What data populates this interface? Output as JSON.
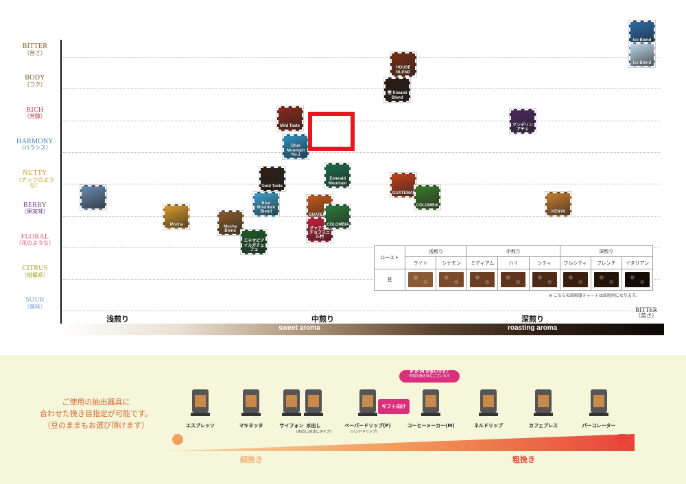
{
  "chart_data": {
    "type": "scatter",
    "y_axis": {
      "levels": [
        {
          "en": "BITTER",
          "jp": "（苦さ）",
          "color": "#8a5a2b"
        },
        {
          "en": "BODY",
          "jp": "（コク）",
          "color": "#6b5a1e"
        },
        {
          "en": "RICH",
          "jp": "（芳醇）",
          "color": "#c5343a"
        },
        {
          "en": "HARMONY",
          "jp": "（バランス）",
          "color": "#3d78b0"
        },
        {
          "en": "NUTTY",
          "jp": "（ナッツのような）",
          "color": "#c99a16"
        },
        {
          "en": "BERRY",
          "jp": "（果実味）",
          "color": "#7b3d8f"
        },
        {
          "en": "FLORAL",
          "jp": "（花のような）",
          "color": "#d9506f"
        },
        {
          "en": "CITRUS",
          "jp": "（柑橘系）",
          "color": "#a0a01e"
        },
        {
          "en": "SOUR",
          "jp": "（酸味）",
          "color": "#7fa0cf"
        }
      ]
    },
    "x_axis": {
      "roast_labels": [
        "浅煎り",
        "中煎り",
        "深煎り"
      ],
      "aroma_labels": [
        "sweet aroma",
        "roasting aroma"
      ],
      "end_label_en": "BITTER",
      "end_label_jp": "（苦さ）"
    },
    "products": [
      {
        "name": "Ice Blend",
        "label": "Ice Blend",
        "x": 9.7,
        "y": 8.8,
        "color": "#2a6aa8"
      },
      {
        "name": "Ice Blend 2",
        "label": "Ice Blend",
        "x": 9.7,
        "y": 8.1,
        "color": "#bcd8ea"
      },
      {
        "name": "Mandheling Achet",
        "label": "マンデリン アチェ",
        "x": 7.7,
        "y": 6.0,
        "color": "#4b2a5e"
      },
      {
        "name": "Kenya",
        "label": "KENYA",
        "x": 8.3,
        "y": 3.4,
        "color": "#c97d2a"
      },
      {
        "name": "House Blend",
        "label": "HOUSE BLEND",
        "x": 5.7,
        "y": 7.8,
        "color": "#7a2e12"
      },
      {
        "name": "Kiwami Blend",
        "label": "極 Kiwami Blend",
        "x": 5.6,
        "y": 7.0,
        "color": "#2a1a12"
      },
      {
        "name": "Emerald Mountain",
        "label": "Emerald Mountain",
        "x": 4.6,
        "y": 4.3,
        "color": "#1e6b4a"
      },
      {
        "name": "Mild Taste",
        "label": "Mild Taste",
        "x": 3.8,
        "y": 6.1,
        "color": "#8b2a1a"
      },
      {
        "name": "Blue Mountain No.1",
        "label": "Blue Mountain No.1",
        "x": 3.9,
        "y": 5.2,
        "color": "#2a8fc0"
      },
      {
        "name": "Gold Taste",
        "label": "Gold Taste",
        "x": 3.5,
        "y": 4.2,
        "color": "#2a1e14"
      },
      {
        "name": "Blue Mountain Blend",
        "label": "Blue Mountain Blend",
        "x": 3.4,
        "y": 3.4,
        "color": "#3a9ec8"
      },
      {
        "name": "Mocha",
        "label": "Mocha",
        "x": 1.9,
        "y": 3.0,
        "color": "#d89a2a"
      },
      {
        "name": "Mocha Blend",
        "label": "Mocha Blend",
        "x": 2.8,
        "y": 2.8,
        "color": "#8a5a2b"
      },
      {
        "name": "Ethiopia Yirgacheffe",
        "label": "エチオピア イルガチェフェ",
        "x": 3.2,
        "y": 2.2,
        "color": "#1e5a2a"
      },
      {
        "name": "Guatemala",
        "label": "GUATEMALA",
        "x": 4.3,
        "y": 3.3,
        "color": "#c45a1a"
      },
      {
        "name": "Guatemala Chofusinilla",
        "label": "グァテマラ チョフスニル村",
        "x": 4.3,
        "y": 2.6,
        "color": "#c4203a"
      },
      {
        "name": "Colombia",
        "label": "COLOMBIA",
        "x": 4.6,
        "y": 3.0,
        "color": "#2a7a3a"
      },
      {
        "name": "Guatemala 2",
        "label": "GUATEMALA",
        "x": 5.7,
        "y": 4.0,
        "color": "#c2401a"
      },
      {
        "name": "Colombia 2",
        "label": "COLOMBIA",
        "x": 6.1,
        "y": 3.6,
        "color": "#3a7a2a"
      },
      {
        "name": "Brazil",
        "label": "",
        "x": 0.5,
        "y": 3.6,
        "color": "#6a8ab0"
      }
    ]
  },
  "roast_table": {
    "row_label_1": "ロースト",
    "row_label_2": "豆",
    "groups": [
      "浅煎り",
      "中煎り",
      "深煎り"
    ],
    "levels": [
      "ライト",
      "シナモン",
      "ミディアム",
      "ハイ",
      "シティ",
      "フルシティ",
      "フレンチ",
      "イタリアン"
    ],
    "bean_colors": [
      "#8a5a35",
      "#7a4a2a",
      "#6a3e22",
      "#5e341c",
      "#4e2a16",
      "#3a1e10",
      "#24140a",
      "#160c06"
    ],
    "note": "※ こちらの焙煎度チャートは焙煎例になります。"
  },
  "grind": {
    "text": [
      "ご使用の抽出器具に",
      "合わせた挽き目指定が可能です。",
      "（豆のままもお選び頂けます）"
    ],
    "tools": [
      {
        "label": "エスプレッソ",
        "sub": ""
      },
      {
        "label": "マキネッタ",
        "sub": ""
      },
      {
        "label": "サイフォン",
        "sub": ""
      },
      {
        "label": "水出し",
        "sub": "(水出し/水出しタイプ)"
      },
      {
        "label": "ペーパードリップ(P)",
        "sub": "(ハンドドリップ)"
      },
      {
        "label": "コーヒーメーカー(M)",
        "sub": ""
      },
      {
        "label": "ネルドリップ",
        "sub": ""
      },
      {
        "label": "カフェプレス",
        "sub": ""
      },
      {
        "label": "パーコレーター",
        "sub": ""
      }
    ],
    "pill_line1": "P か M が多いです♪",
    "pill_line2": "中間の挽き目もございます",
    "gift_label": "ギフト向け",
    "fine_label": "細挽き",
    "coarse_label": "粗挽き"
  }
}
